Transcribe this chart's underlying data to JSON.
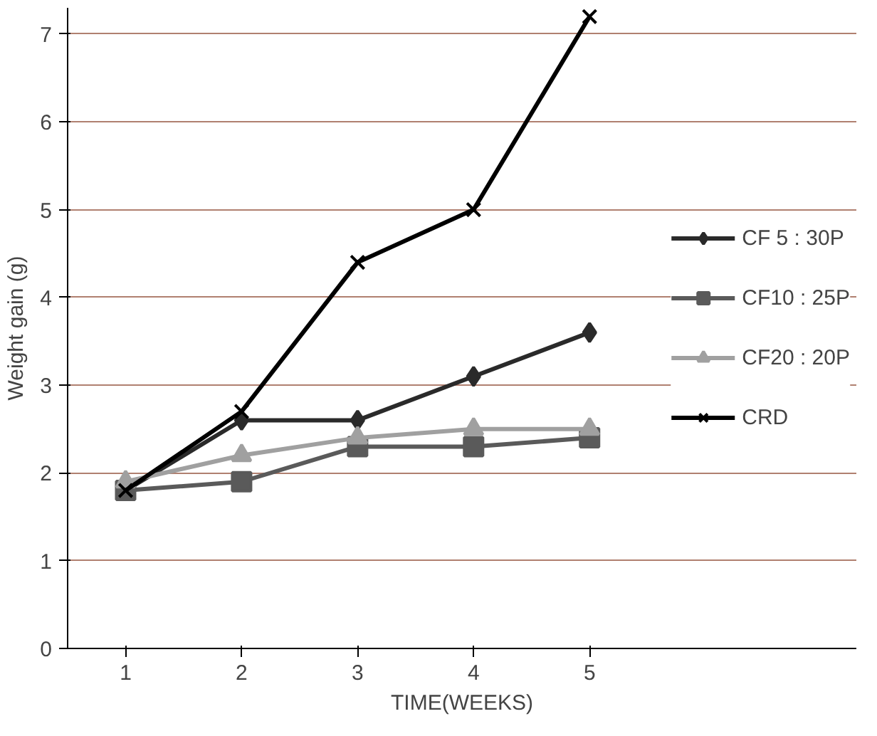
{
  "chart_data": {
    "type": "line",
    "xlabel": "TIME(WEEKS)",
    "ylabel": "Weight gain (g)",
    "categories": [
      "1",
      "2",
      "3",
      "4",
      "5"
    ],
    "ylim": [
      0,
      7.3
    ],
    "yticks": [
      0,
      1,
      2,
      3,
      4,
      5,
      6,
      7
    ],
    "grid": "y",
    "legend": "right",
    "line_style": "solid",
    "series": [
      {
        "name": "CF 5 : 30P",
        "color": "#2a2a2a",
        "marker": "diamond",
        "values": [
          1.8,
          2.6,
          2.6,
          3.1,
          3.6
        ]
      },
      {
        "name": "CF10 : 25P",
        "color": "#5a5a5a",
        "marker": "square",
        "values": [
          1.8,
          1.9,
          2.3,
          2.3,
          2.4
        ]
      },
      {
        "name": "CF20 : 20P",
        "color": "#a0a0a0",
        "marker": "triangle",
        "values": [
          1.9,
          2.2,
          2.4,
          2.5,
          2.5
        ]
      },
      {
        "name": "CRD",
        "color": "#000000",
        "marker": "cross",
        "values": [
          1.8,
          2.7,
          4.4,
          5.0,
          7.2
        ]
      }
    ]
  }
}
